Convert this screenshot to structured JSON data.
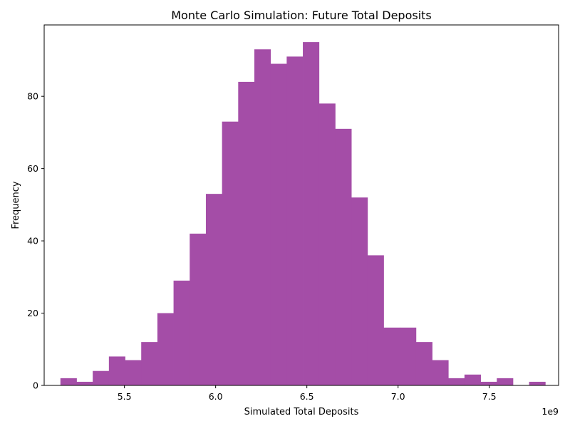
{
  "chart_data": {
    "type": "bar",
    "title": "Monte Carlo Simulation: Future Total Deposits",
    "xlabel": "Simulated Total Deposits",
    "ylabel": "Frequency",
    "x_offset_label": "1e9",
    "bar_color": "#a44da7",
    "grid": false,
    "legend": "none",
    "xlim": [
      5.06,
      7.88
    ],
    "ylim": [
      0,
      99.75
    ],
    "x_ticks": [
      {
        "value": 5.5,
        "label": "5.5"
      },
      {
        "value": 6.0,
        "label": "6.0"
      },
      {
        "value": 6.5,
        "label": "6.5"
      },
      {
        "value": 7.0,
        "label": "7.0"
      },
      {
        "value": 7.5,
        "label": "7.5"
      }
    ],
    "y_ticks": [
      {
        "value": 0,
        "label": "0"
      },
      {
        "value": 20,
        "label": "20"
      },
      {
        "value": 40,
        "label": "40"
      },
      {
        "value": 60,
        "label": "60"
      },
      {
        "value": 80,
        "label": "80"
      }
    ],
    "bin_start": 5.149,
    "bin_width": 0.0886,
    "counts": [
      2,
      1,
      4,
      8,
      7,
      12,
      20,
      29,
      42,
      53,
      73,
      84,
      93,
      89,
      91,
      95,
      78,
      71,
      52,
      36,
      16,
      16,
      12,
      7,
      2,
      3,
      1,
      2,
      0,
      1
    ]
  }
}
